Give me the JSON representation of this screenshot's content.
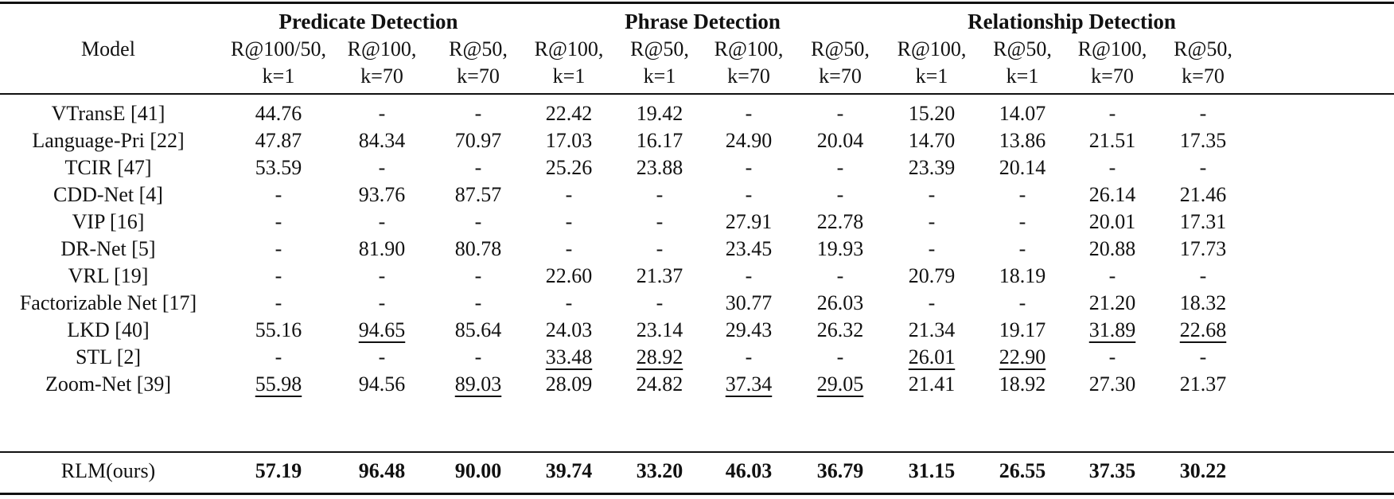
{
  "table": {
    "model_header": "Model",
    "groups": [
      {
        "label": "Predicate Detection"
      },
      {
        "label": "Phrase Detection"
      },
      {
        "label": "Relationship Detection"
      }
    ],
    "columns": [
      {
        "line1": "R@100/50,",
        "line2": "k=1"
      },
      {
        "line1": "R@100,",
        "line2": "k=70"
      },
      {
        "line1": "R@50,",
        "line2": "k=70"
      },
      {
        "line1": "R@100,",
        "line2": "k=1"
      },
      {
        "line1": "R@50,",
        "line2": "k=1"
      },
      {
        "line1": "R@100,",
        "line2": "k=70"
      },
      {
        "line1": "R@50,",
        "line2": "k=70"
      },
      {
        "line1": "R@100,",
        "line2": "k=1"
      },
      {
        "line1": "R@50,",
        "line2": "k=1"
      },
      {
        "line1": "R@100,",
        "line2": "k=70"
      },
      {
        "line1": "R@50,",
        "line2": "k=70"
      }
    ],
    "rows": [
      {
        "model": "VTransE [41]",
        "values": [
          "44.76",
          "-",
          "-",
          "22.42",
          "19.42",
          "-",
          "-",
          "15.20",
          "14.07",
          "-",
          "-"
        ],
        "underline": []
      },
      {
        "model": "Language-Pri [22]",
        "values": [
          "47.87",
          "84.34",
          "70.97",
          "17.03",
          "16.17",
          "24.90",
          "20.04",
          "14.70",
          "13.86",
          "21.51",
          "17.35"
        ],
        "underline": []
      },
      {
        "model": "TCIR [47]",
        "values": [
          "53.59",
          "-",
          "-",
          "25.26",
          "23.88",
          "-",
          "-",
          "23.39",
          "20.14",
          "-",
          "-"
        ],
        "underline": []
      },
      {
        "model": "CDD-Net [4]",
        "values": [
          "-",
          "93.76",
          "87.57",
          "-",
          "-",
          "-",
          "-",
          "-",
          "-",
          "26.14",
          "21.46"
        ],
        "underline": []
      },
      {
        "model": "VIP [16]",
        "values": [
          "-",
          "-",
          "-",
          "-",
          "-",
          "27.91",
          "22.78",
          "-",
          "-",
          "20.01",
          "17.31"
        ],
        "underline": []
      },
      {
        "model": "DR-Net [5]",
        "values": [
          "-",
          "81.90",
          "80.78",
          "-",
          "-",
          "23.45",
          "19.93",
          "-",
          "-",
          "20.88",
          "17.73"
        ],
        "underline": []
      },
      {
        "model": "VRL [19]",
        "values": [
          "-",
          "-",
          "-",
          "22.60",
          "21.37",
          "-",
          "-",
          "20.79",
          "18.19",
          "-",
          "-"
        ],
        "underline": []
      },
      {
        "model": "Factorizable Net [17]",
        "values": [
          "-",
          "-",
          "-",
          "-",
          "-",
          "30.77",
          "26.03",
          "-",
          "-",
          "21.20",
          "18.32"
        ],
        "underline": []
      },
      {
        "model": "LKD [40]",
        "values": [
          "55.16",
          "94.65",
          "85.64",
          "24.03",
          "23.14",
          "29.43",
          "26.32",
          "21.34",
          "19.17",
          "31.89",
          "22.68"
        ],
        "underline": [
          1,
          9,
          10
        ]
      },
      {
        "model": "STL [2]",
        "values": [
          "-",
          "-",
          "-",
          "33.48",
          "28.92",
          "-",
          "-",
          "26.01",
          "22.90",
          "-",
          "-"
        ],
        "underline": [
          3,
          4,
          7,
          8
        ]
      },
      {
        "model": "Zoom-Net [39]",
        "values": [
          "55.98",
          "94.56",
          "89.03",
          "28.09",
          "24.82",
          "37.34",
          "29.05",
          "21.41",
          "18.92",
          "27.30",
          "21.37"
        ],
        "underline": [
          0,
          2,
          5,
          6
        ]
      }
    ],
    "ours": {
      "model": "RLM(ours)",
      "values": [
        "57.19",
        "96.48",
        "90.00",
        "39.74",
        "33.20",
        "46.03",
        "36.79",
        "31.15",
        "26.55",
        "37.35",
        "30.22"
      ]
    }
  }
}
